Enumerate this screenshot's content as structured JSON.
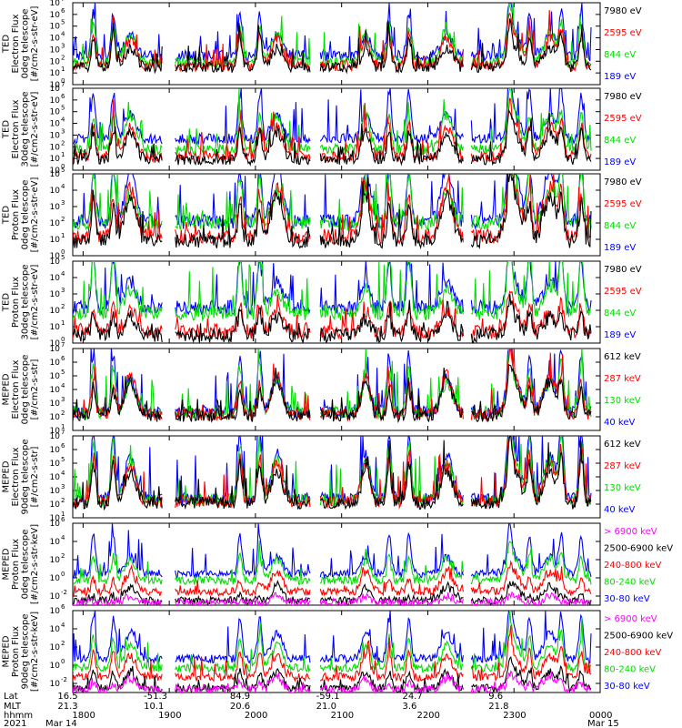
{
  "chart_data": [
    {
      "type": "line",
      "ylabel_lines": [
        "TED",
        "Electron Flux",
        "0deg telescope",
        "[#/cm2-s-str-eV]"
      ],
      "ylim": [
        1,
        10000000
      ],
      "yscale": "log",
      "yticks": [
        [
          "10",
          "0"
        ],
        [
          "10",
          "1"
        ],
        [
          "10",
          "2"
        ],
        [
          "10",
          "3"
        ],
        [
          "10",
          "4"
        ],
        [
          "10",
          "5"
        ],
        [
          "10",
          "6"
        ],
        [
          "10",
          "7"
        ]
      ],
      "series": [
        {
          "name": "7980 eV",
          "color": "#000000",
          "base": 30,
          "mult": [
            1.0,
            0.9
          ]
        },
        {
          "name": "2595 eV",
          "color": "#ff0000",
          "base": 40,
          "mult": [
            1.1,
            1.3
          ]
        },
        {
          "name": "844 eV",
          "color": "#00dd00",
          "base": 80,
          "mult": [
            1.2,
            1.4
          ]
        },
        {
          "name": "189 eV",
          "color": "#0000ff",
          "base": 300,
          "mult": [
            1.4,
            1.0
          ]
        }
      ]
    },
    {
      "type": "line",
      "ylabel_lines": [
        "TED",
        "Electron Flux",
        "30deg telescope",
        "[#/cm2-s-str-eV]"
      ],
      "ylim": [
        1,
        10000000
      ],
      "yscale": "log",
      "yticks": [
        [
          "10",
          "0"
        ],
        [
          "10",
          "1"
        ],
        [
          "10",
          "2"
        ],
        [
          "10",
          "3"
        ],
        [
          "10",
          "4"
        ],
        [
          "10",
          "5"
        ],
        [
          "10",
          "6"
        ],
        [
          "10",
          "7"
        ]
      ],
      "series": [
        {
          "name": "7980 eV",
          "color": "#000000",
          "base": 8,
          "mult": [
            0.9,
            1.3
          ]
        },
        {
          "name": "2595 eV",
          "color": "#ff0000",
          "base": 15,
          "mult": [
            1.0,
            1.4
          ]
        },
        {
          "name": "844 eV",
          "color": "#00dd00",
          "base": 60,
          "mult": [
            1.1,
            1.6
          ]
        },
        {
          "name": "189 eV",
          "color": "#0000ff",
          "base": 500,
          "mult": [
            1.5,
            1.1
          ]
        }
      ]
    },
    {
      "type": "line",
      "ylabel_lines": [
        "TED",
        "Proton Flux",
        "0deg telescope",
        "[#/cm2-s-str-eV]"
      ],
      "ylim": [
        1,
        100000
      ],
      "yscale": "log",
      "yticks": [
        [
          "10",
          "0"
        ],
        [
          "10",
          "1"
        ],
        [
          "10",
          "2"
        ],
        [
          "10",
          "3"
        ],
        [
          "10",
          "4"
        ],
        [
          "10",
          "5"
        ]
      ],
      "series": [
        {
          "name": "7980 eV",
          "color": "#000000",
          "base": 8,
          "mult": [
            0.8,
            1.5
          ]
        },
        {
          "name": "2595 eV",
          "color": "#ff0000",
          "base": 15,
          "mult": [
            0.9,
            1.7
          ]
        },
        {
          "name": "844 eV",
          "color": "#00dd00",
          "base": 100,
          "mult": [
            1.2,
            1.0
          ]
        },
        {
          "name": "189 eV",
          "color": "#0000ff",
          "base": 120,
          "mult": [
            1.3,
            1.8
          ]
        }
      ]
    },
    {
      "type": "line",
      "ylabel_lines": [
        "TED",
        "Proton Flux",
        "30deg telescope",
        "[#/cm2-s-str-eV]"
      ],
      "ylim": [
        1,
        100000
      ],
      "yscale": "log",
      "yticks": [
        [
          "10",
          "0"
        ],
        [
          "10",
          "1"
        ],
        [
          "10",
          "2"
        ],
        [
          "10",
          "3"
        ],
        [
          "10",
          "4"
        ],
        [
          "10",
          "5"
        ]
      ],
      "series": [
        {
          "name": "7980 eV",
          "color": "#000000",
          "base": 3,
          "mult": [
            0.5,
            0.6
          ]
        },
        {
          "name": "2595 eV",
          "color": "#ff0000",
          "base": 5,
          "mult": [
            0.6,
            0.7
          ]
        },
        {
          "name": "844 eV",
          "color": "#00dd00",
          "base": 70,
          "mult": [
            1.5,
            0.8
          ]
        },
        {
          "name": "189 eV",
          "color": "#0000ff",
          "base": 150,
          "mult": [
            1.2,
            0.9
          ]
        }
      ]
    },
    {
      "type": "line",
      "ylabel_lines": [
        "MEPED",
        "Electron Flux",
        "0deg telescope",
        "[#/cm2-s-str]"
      ],
      "ylim": [
        10,
        10000000
      ],
      "yscale": "log",
      "yticks": [
        [
          "10",
          "1"
        ],
        [
          "10",
          "2"
        ],
        [
          "10",
          "3"
        ],
        [
          "10",
          "4"
        ],
        [
          "10",
          "5"
        ],
        [
          "10",
          "6"
        ],
        [
          "10",
          "7"
        ]
      ],
      "series": [
        {
          "name": "612 keV",
          "color": "#000000",
          "base": 120,
          "mult": [
            0.7,
            1.4
          ]
        },
        {
          "name": "287 keV",
          "color": "#ff0000",
          "base": 150,
          "mult": [
            0.9,
            1.6
          ]
        },
        {
          "name": "130 keV",
          "color": "#00dd00",
          "base": 200,
          "mult": [
            1.3,
            1.2
          ]
        },
        {
          "name": "40 keV",
          "color": "#0000ff",
          "base": 250,
          "mult": [
            1.6,
            1.3
          ]
        }
      ]
    },
    {
      "type": "line",
      "ylabel_lines": [
        "MEPED",
        "Electron Flux",
        "90deg telescope",
        "[#/cm2-s-str]"
      ],
      "ylim": [
        10,
        10000000
      ],
      "yscale": "log",
      "yticks": [
        [
          "10",
          "1"
        ],
        [
          "10",
          "2"
        ],
        [
          "10",
          "3"
        ],
        [
          "10",
          "4"
        ],
        [
          "10",
          "5"
        ],
        [
          "10",
          "6"
        ],
        [
          "10",
          "7"
        ]
      ],
      "series": [
        {
          "name": "612 keV",
          "color": "#000000",
          "base": 120,
          "mult": [
            1.1,
            1.3
          ]
        },
        {
          "name": "287 keV",
          "color": "#ff0000",
          "base": 150,
          "mult": [
            1.3,
            1.5
          ]
        },
        {
          "name": "130 keV",
          "color": "#00dd00",
          "base": 200,
          "mult": [
            1.6,
            1.6
          ]
        },
        {
          "name": "40 keV",
          "color": "#0000ff",
          "base": 250,
          "mult": [
            1.9,
            1.8
          ]
        }
      ]
    },
    {
      "type": "line",
      "ylabel_lines": [
        "MEPED",
        "Proton Flux",
        "0deg telescope",
        "[#/cm2-s-str-keV]"
      ],
      "ylim": [
        0.001,
        1000000
      ],
      "yscale": "log",
      "yticks": [
        [
          "10",
          "-2"
        ],
        [
          "10",
          "0"
        ],
        [
          "10",
          "2"
        ],
        [
          "10",
          "4"
        ],
        [
          "10",
          "6"
        ]
      ],
      "series": [
        {
          "name": "> 6900 keV",
          "color": "#ff00ff",
          "base": 0.002,
          "mult": [
            0.0,
            0.4
          ]
        },
        {
          "name": "2500-6900 keV",
          "color": "#000000",
          "base": 0.003,
          "mult": [
            0.2,
            0.9
          ]
        },
        {
          "name": "240-800 keV",
          "color": "#ff0000",
          "base": 0.03,
          "mult": [
            0.5,
            1.2
          ]
        },
        {
          "name": "80-240 keV",
          "color": "#00dd00",
          "base": 0.5,
          "mult": [
            1.0,
            1.3
          ]
        },
        {
          "name": "30-80 keV",
          "color": "#0000ff",
          "base": 3,
          "mult": [
            1.6,
            1.0
          ]
        }
      ]
    },
    {
      "type": "line",
      "ylabel_lines": [
        "MEPED",
        "Proton Flux",
        "90deg telescope",
        "[#/cm2-s-str-keV]"
      ],
      "ylim": [
        0.001,
        1000000
      ],
      "yscale": "log",
      "yticks": [
        [
          "10",
          "-2"
        ],
        [
          "10",
          "0"
        ],
        [
          "10",
          "2"
        ],
        [
          "10",
          "4"
        ],
        [
          "10",
          "6"
        ]
      ],
      "series": [
        {
          "name": "> 6900 keV",
          "color": "#ff00ff",
          "base": 0.002,
          "mult": [
            0.3,
            0.7
          ]
        },
        {
          "name": "2500-6900 keV",
          "color": "#000000",
          "base": 0.003,
          "mult": [
            0.7,
            1.0
          ]
        },
        {
          "name": "240-800 keV",
          "color": "#ff0000",
          "base": 0.05,
          "mult": [
            1.1,
            1.3
          ]
        },
        {
          "name": "80-240 keV",
          "color": "#00dd00",
          "base": 0.5,
          "mult": [
            1.3,
            1.4
          ]
        },
        {
          "name": "30-80 keV",
          "color": "#0000ff",
          "base": 5,
          "mult": [
            1.7,
            1.6
          ]
        }
      ]
    }
  ],
  "x_axis": {
    "row_labels": [
      "Lat",
      "MLT",
      "hhmm",
      "2021"
    ],
    "tick_times": [
      "1800",
      "1900",
      "2000",
      "2100",
      "2200",
      "2300",
      "0000"
    ],
    "lat": [
      "16.5",
      "-51.3",
      "84.9",
      "-59.1",
      "24.7",
      "9.6"
    ],
    "mlt": [
      "21.3",
      "10.1",
      "20.6",
      "21.0",
      "3.6",
      "21.8"
    ],
    "dates": [
      "Mar 14",
      "Mar 15"
    ]
  }
}
